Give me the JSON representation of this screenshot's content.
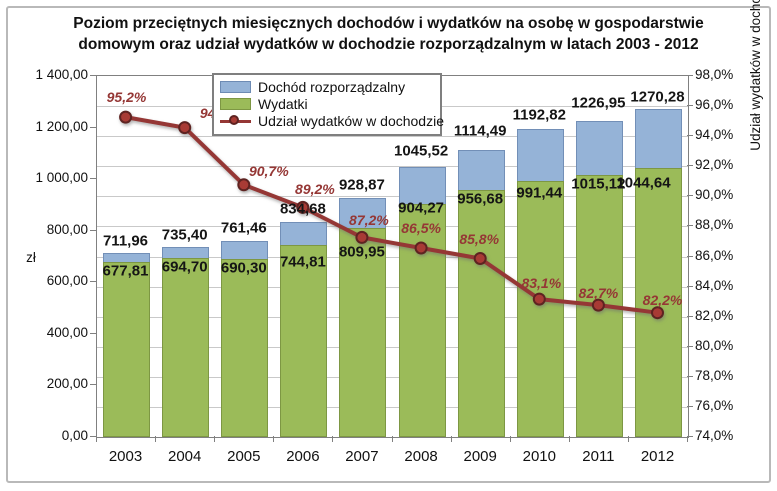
{
  "title": "Poziom przeciętnych miesięcznych dochodów i wydatków na osobę w gospodarstwie domowym oraz udział wydatków w dochodzie rozporządzalnym w latach 2003 - 2012",
  "colors": {
    "income_bar": "#95B3D7",
    "expense_bar": "#9BBB59",
    "line": "#953735",
    "marker_fill": "#A83B35",
    "marker_stroke": "#5E2321",
    "pct_label": "#953735",
    "gridline": "#C9C9C9",
    "plot_border": "#808080"
  },
  "chart_data": {
    "type": "bar",
    "subtype": "overlapped-bars-with-line",
    "categories": [
      "2003",
      "2004",
      "2005",
      "2006",
      "2007",
      "2008",
      "2009",
      "2010",
      "2011",
      "2012"
    ],
    "series": [
      {
        "name": "Dochód rozporządzalny",
        "type": "bar",
        "axis": "left",
        "color": "#95B3D7",
        "values": [
          711.96,
          735.4,
          761.46,
          834.68,
          928.87,
          1045.52,
          1114.49,
          1192.82,
          1226.95,
          1270.28
        ],
        "labels": [
          "711,96",
          "735,40",
          "761,46",
          "834,68",
          "928,87",
          "1045,52",
          "1114,49",
          "1192,82",
          "1226,95",
          "1270,28"
        ],
        "label_offsets": [
          [
            0,
            0
          ],
          [
            0,
            0
          ],
          [
            0,
            0
          ],
          [
            0,
            0
          ],
          [
            0,
            0
          ],
          [
            0,
            -4
          ],
          [
            0,
            -6
          ],
          [
            0,
            -2
          ],
          [
            0,
            -5
          ],
          [
            0,
            0
          ]
        ]
      },
      {
        "name": "Wydatki",
        "type": "bar",
        "axis": "left",
        "color": "#9BBB59",
        "values": [
          677.81,
          694.7,
          690.3,
          744.81,
          809.95,
          904.27,
          956.68,
          991.44,
          1015.12,
          1044.64
        ],
        "labels": [
          "677,81",
          "694,70",
          "690,30",
          "744,81",
          "809,95",
          "904,27",
          "956,68",
          "991,44",
          "1015,12",
          "1044,64"
        ],
        "label_offsets": [
          [
            0,
            0
          ],
          [
            0,
            0
          ],
          [
            0,
            0
          ],
          [
            0,
            8
          ],
          [
            0,
            15
          ],
          [
            0,
            -5
          ],
          [
            0,
            0
          ],
          [
            0,
            3
          ],
          [
            0,
            0
          ],
          [
            -14,
            6
          ]
        ]
      },
      {
        "name": "Udział wydatków w dochodzie",
        "type": "line",
        "axis": "right",
        "color": "#953735",
        "values": [
          95.2,
          94.5,
          90.7,
          89.2,
          87.2,
          86.5,
          85.8,
          83.1,
          82.7,
          82.2
        ],
        "labels": [
          "95,2%",
          "94,5%",
          "90,7%",
          "89,2%",
          "87,2%",
          "86,5%",
          "85,8%",
          "83,1%",
          "82,7%",
          "82,2%"
        ],
        "label_offsets": [
          [
            1,
            -20
          ],
          [
            35,
            -15
          ],
          [
            25,
            -14
          ],
          [
            12,
            -18
          ],
          [
            7,
            -17
          ],
          [
            0,
            -20
          ],
          [
            -1,
            -20
          ],
          [
            2,
            -16
          ],
          [
            0,
            -12
          ],
          [
            5,
            -13
          ]
        ]
      }
    ],
    "left_axis": {
      "label": "zł",
      "min": 0,
      "max": 1400,
      "major_step": 200,
      "tick_labels": [
        "0,00",
        "200,00",
        "400,00",
        "600,00",
        "800,00",
        "1 000,00",
        "1 200,00",
        "1 400,00"
      ]
    },
    "right_axis": {
      "label": "Udział wydatków w dochodzie w %",
      "min": 74,
      "max": 98,
      "major_step": 2,
      "tick_labels": [
        "74,0%",
        "76,0%",
        "78,0%",
        "80,0%",
        "82,0%",
        "84,0%",
        "86,0%",
        "88,0%",
        "90,0%",
        "92,0%",
        "94,0%",
        "96,0%",
        "98,0%"
      ]
    },
    "grid": true,
    "legend_position": "top-inside"
  }
}
